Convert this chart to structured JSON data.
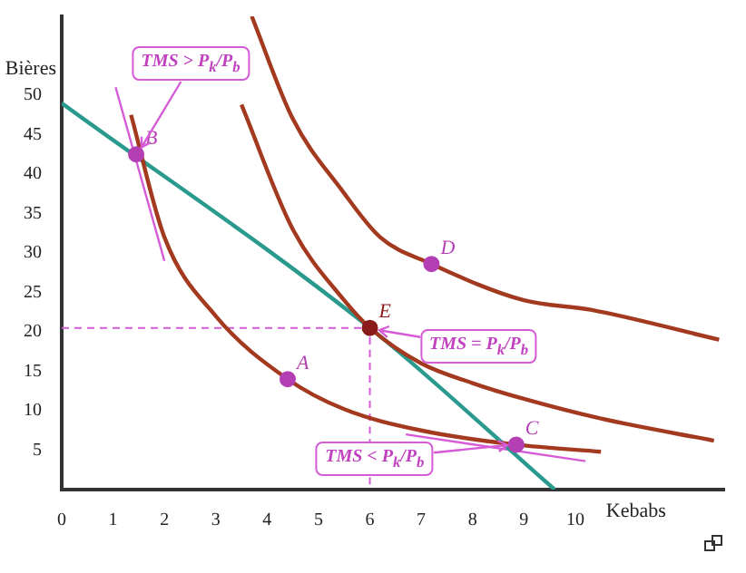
{
  "chart_data": {
    "type": "line",
    "xlabel": "Kebabs",
    "ylabel": "Bières",
    "xlim": [
      0,
      12.9
    ],
    "ylim": [
      0,
      60
    ],
    "xticks": [
      0,
      1,
      2,
      3,
      4,
      5,
      6,
      7,
      8,
      9,
      10
    ],
    "yticks": [
      5,
      10,
      15,
      20,
      25,
      30,
      35,
      40,
      45,
      50
    ],
    "grid": false,
    "legend": false,
    "marker": "none",
    "series": [
      {
        "color": "#a3391f",
        "x": [
          1.35,
          2,
          3,
          4.4,
          5.5,
          7,
          8.85,
          10.5
        ],
        "values": [
          47.5,
          32,
          22,
          14,
          10.2,
          7.5,
          5.7,
          4.8
        ]
      },
      {
        "color": "#a3391f",
        "x": [
          3.5,
          4.5,
          5.5,
          6,
          7,
          8,
          9,
          10.5,
          12.7
        ],
        "values": [
          48.8,
          33,
          24,
          20.5,
          16,
          13.5,
          11.5,
          9,
          6.2
        ]
      },
      {
        "color": "#a3391f",
        "x": [
          3.7,
          4.5,
          5.45,
          6.2,
          7.2,
          9,
          10.3,
          12.8
        ],
        "values": [
          60,
          47,
          38,
          32,
          28.6,
          24,
          22.8,
          19
        ]
      },
      {
        "color": "#2a9a8e",
        "x": [
          0,
          6,
          9.6
        ],
        "values": [
          49,
          20.5,
          0
        ]
      },
      {
        "color": "#d65bd6",
        "line_style": "dashed",
        "x": [
          0,
          6,
          6
        ],
        "values": [
          20.5,
          20.5,
          0
        ]
      },
      {
        "color": "#d65bd6",
        "x": [
          1.05,
          2
        ],
        "values": [
          51,
          29
        ]
      },
      {
        "color": "#d65bd6",
        "x": [
          6.7,
          10.2
        ],
        "values": [
          7,
          3.6
        ]
      },
      {
        "type": "scatter",
        "name": "A",
        "color": "#b43fb4",
        "marker": "circle",
        "x": [
          4.4
        ],
        "values": [
          14
        ]
      },
      {
        "type": "scatter",
        "name": "B",
        "color": "#b43fb4",
        "marker": "circle",
        "x": [
          1.45
        ],
        "values": [
          42.5
        ]
      },
      {
        "type": "scatter",
        "name": "C",
        "color": "#b43fb4",
        "marker": "circle",
        "x": [
          8.85
        ],
        "values": [
          5.7
        ]
      },
      {
        "type": "scatter",
        "name": "D",
        "color": "#b43fb4",
        "marker": "circle",
        "x": [
          7.2
        ],
        "values": [
          28.6
        ]
      },
      {
        "type": "scatter",
        "name": "E",
        "color": "#8b1a1a",
        "marker": "circle",
        "x": [
          6
        ],
        "values": [
          20.5
        ]
      }
    ],
    "annotations": [
      {
        "text": "TMS > P$_{k}$/P$_{b}$",
        "x": 1.45,
        "y": 42.5
      },
      {
        "text": "TMS = P$_{k}$/P$_{b}$",
        "x": 6,
        "y": 20.5
      },
      {
        "text": "TMS < P$_{k}$/P$_{b}$",
        "x": 8.85,
        "y": 5.7
      }
    ]
  }
}
